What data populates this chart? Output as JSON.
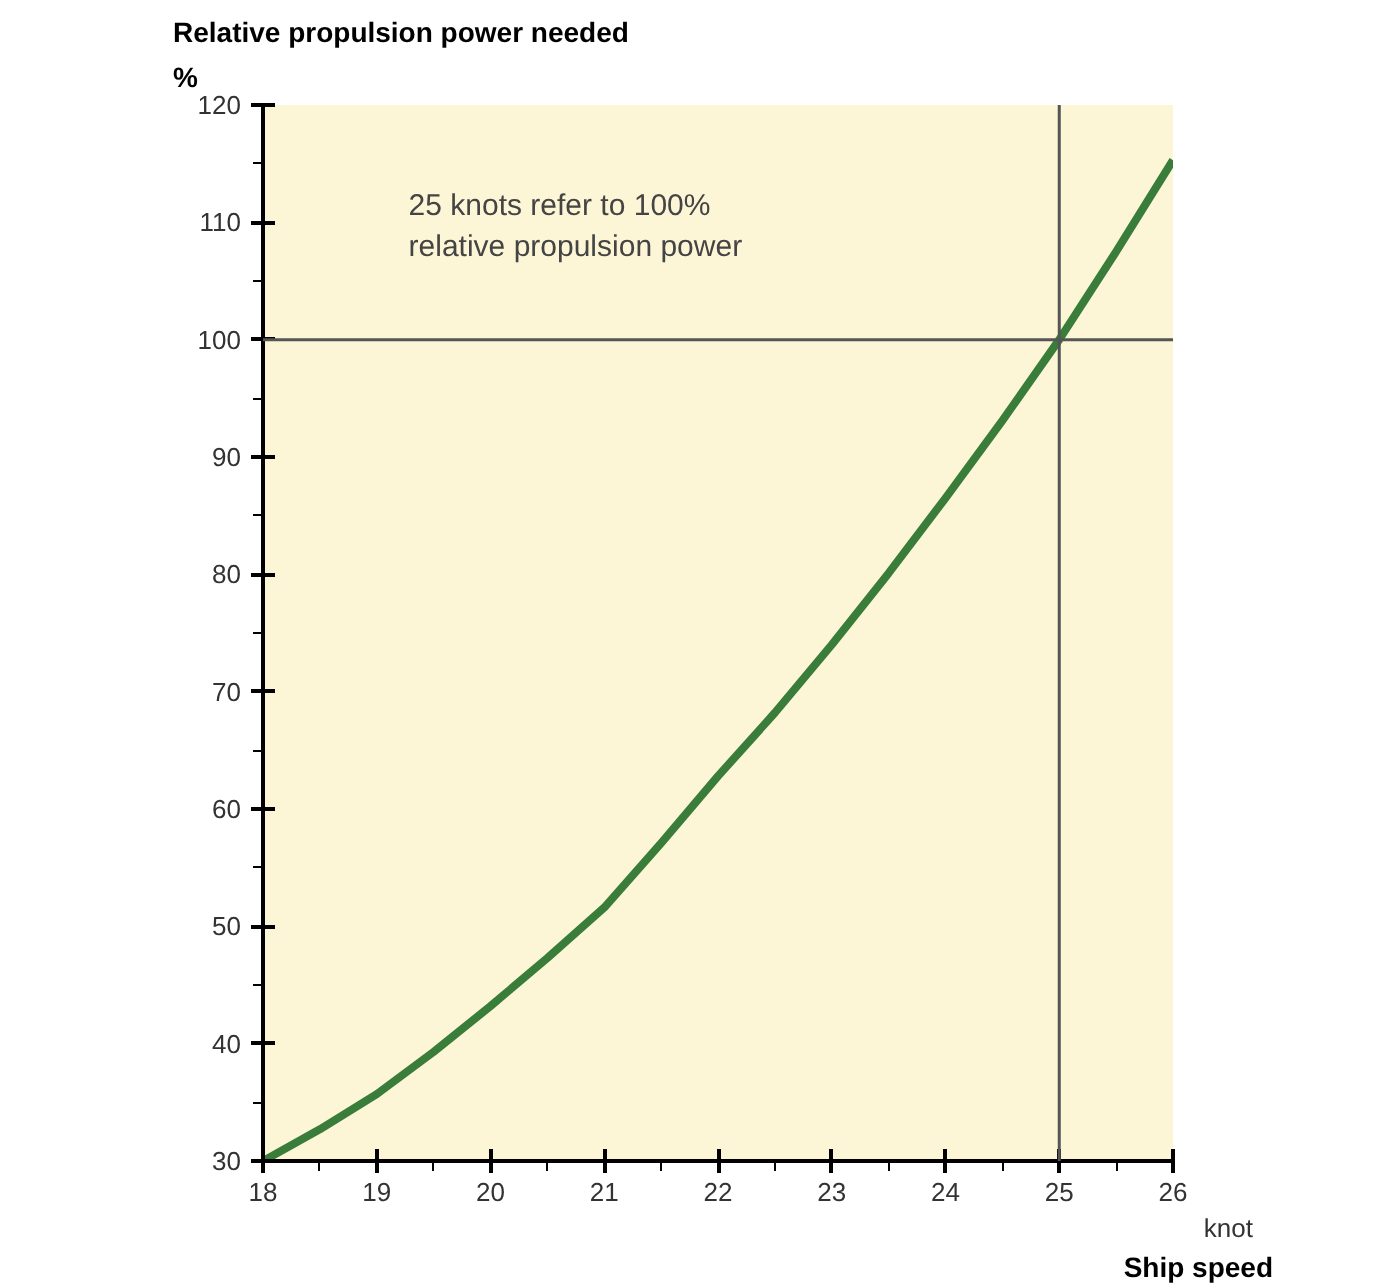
{
  "chart_data": {
    "type": "line",
    "ylabel": "Relative propulsion power needed\n%",
    "xlabel": "knot\nShip speed",
    "annotations": [
      "25 knots refer to 100%\nrelative propulsion power"
    ],
    "x": [
      18,
      18.5,
      19,
      19.5,
      20,
      20.5,
      21,
      21.5,
      22,
      22.5,
      23,
      23.5,
      24,
      24.5,
      25,
      25.5,
      26
    ],
    "series": [
      {
        "color": "#3a7d3a",
        "values": [
          30,
          32.7,
          35.7,
          39.3,
          43.2,
          47.3,
          51.6,
          57.1,
          62.8,
          68.2,
          74,
          80.1,
          86.5,
          93.1,
          100,
          107.5,
          115.3
        ]
      }
    ],
    "xlim": [
      18,
      26
    ],
    "ylim": [
      30,
      120
    ],
    "xticks": [
      18,
      19,
      20,
      21,
      22,
      23,
      24,
      25,
      26
    ],
    "yticks": [
      30,
      40,
      50,
      60,
      70,
      80,
      90,
      100,
      110,
      120
    ],
    "ref_lines": [
      {
        "axis": "y",
        "value": 100,
        "color": "#555555"
      },
      {
        "axis": "x",
        "value": 25,
        "color": "#555555"
      }
    ],
    "grid": false,
    "marker": "none",
    "line_style": "solid"
  }
}
